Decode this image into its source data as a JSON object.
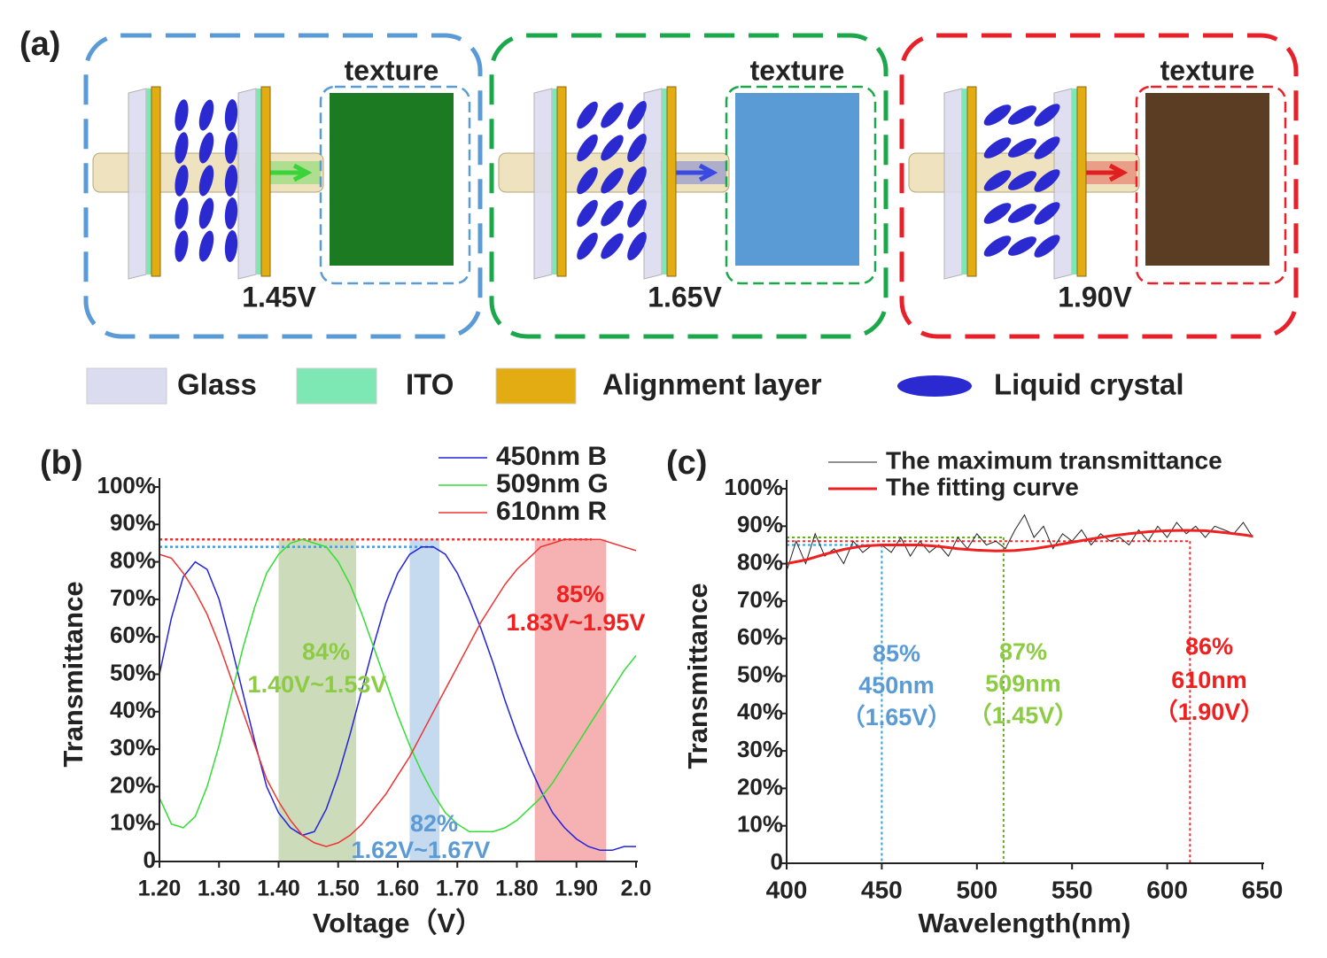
{
  "panel_a": {
    "label": "(a)",
    "cells": [
      {
        "texture_label": "texture",
        "voltage": "1.45V",
        "texture_color": "#1c7a22",
        "border_color": "#5b9bd5",
        "beam_color": "#3ad43a"
      },
      {
        "texture_label": "texture",
        "voltage": "1.65V",
        "texture_color": "#5b9bd5",
        "border_color": "#1aa84a",
        "beam_color": "#3a4ae0"
      },
      {
        "texture_label": "texture",
        "voltage": "1.90V",
        "texture_color": "#5a3d22",
        "border_color": "#e8202a",
        "beam_color": "#e02020"
      }
    ],
    "legend": [
      {
        "name": "Glass",
        "color": "#dcdcf0"
      },
      {
        "name": "ITO",
        "color": "#7ee8b4"
      },
      {
        "name": "Alignment layer",
        "color": "#e3ac12"
      },
      {
        "name": "Liquid crystal",
        "color": "#2a2ad0"
      }
    ]
  },
  "chart_data": [
    {
      "type": "line",
      "label": "(b)",
      "x_label": "Voltage（V）",
      "y_label": "Transmittance",
      "x": [
        1.2,
        1.22,
        1.24,
        1.26,
        1.28,
        1.3,
        1.32,
        1.34,
        1.36,
        1.38,
        1.4,
        1.42,
        1.44,
        1.46,
        1.48,
        1.5,
        1.52,
        1.54,
        1.56,
        1.58,
        1.6,
        1.62,
        1.64,
        1.66,
        1.68,
        1.7,
        1.72,
        1.74,
        1.76,
        1.78,
        1.8,
        1.82,
        1.84,
        1.86,
        1.88,
        1.9,
        1.92,
        1.94,
        1.96,
        1.98,
        2.0
      ],
      "series": [
        {
          "name": "450nm B",
          "color": "#2222dd",
          "values": [
            50,
            65,
            76,
            80,
            78,
            70,
            58,
            45,
            32,
            20,
            13,
            9,
            7,
            8,
            14,
            23,
            34,
            46,
            58,
            69,
            77,
            82,
            84,
            84,
            82,
            77,
            70,
            62,
            53,
            43,
            34,
            26,
            19,
            13,
            9,
            6,
            4,
            3,
            3,
            4,
            4
          ]
        },
        {
          "name": "509nm G",
          "color": "#33dd33",
          "values": [
            17,
            10,
            9,
            12,
            20,
            31,
            44,
            57,
            68,
            77,
            82,
            85,
            86,
            85,
            84,
            80,
            74,
            66,
            57,
            48,
            39,
            31,
            24,
            18,
            13,
            10,
            8,
            8,
            8,
            9,
            11,
            14,
            17,
            21,
            26,
            31,
            36,
            41,
            46,
            51,
            55
          ]
        },
        {
          "name": "610nm R",
          "color": "#ee3333",
          "values": [
            82,
            81,
            77,
            72,
            66,
            58,
            49,
            40,
            31,
            22,
            16,
            11,
            7,
            5,
            4,
            5,
            7,
            10,
            14,
            18,
            23,
            28,
            34,
            40,
            46,
            52,
            58,
            64,
            69,
            74,
            78,
            81,
            84,
            85,
            86,
            86,
            86,
            86,
            85,
            84,
            83
          ]
        }
      ],
      "bands": [
        {
          "x": [
            1.4,
            1.53
          ],
          "color": "#c3d6ae"
        },
        {
          "x": [
            1.62,
            1.67
          ],
          "color": "#bcd4ec"
        },
        {
          "x": [
            1.83,
            1.95
          ],
          "color": "#f4a4a4"
        }
      ],
      "ref_lines": [
        {
          "value": 86,
          "color": "#ee3333"
        },
        {
          "value": 84,
          "color": "#4a9ae0"
        }
      ],
      "annotations": [
        {
          "text": "84%",
          "color": "#8ccc44"
        },
        {
          "text": "1.40V~1.53V",
          "color": "#8ccc44"
        },
        {
          "text": "82%",
          "color": "#5b9bd5"
        },
        {
          "text": "1.62V~1.67V",
          "color": "#5b9bd5"
        },
        {
          "text": "85%",
          "color": "#ee2020"
        },
        {
          "text": "1.83V~1.95V",
          "color": "#ee2020"
        }
      ],
      "xlim": [
        1.2,
        2.0
      ],
      "xticks": [
        {
          "value": 1.2,
          "label": "1.20"
        },
        {
          "value": 1.3,
          "label": "1.30"
        },
        {
          "value": 1.4,
          "label": "1.40"
        },
        {
          "value": 1.5,
          "label": "1.50"
        },
        {
          "value": 1.6,
          "label": "1.60"
        },
        {
          "value": 1.7,
          "label": "1.70"
        },
        {
          "value": 1.8,
          "label": "1.80"
        },
        {
          "value": 1.9,
          "label": "1.90"
        },
        {
          "value": 2.0,
          "label": "2.0"
        }
      ],
      "ylim": [
        0,
        100
      ],
      "yticks": [
        0,
        {
          "value": 10,
          "label": "10%"
        },
        {
          "value": 20,
          "label": "20%"
        },
        {
          "value": 30,
          "label": "30%"
        },
        {
          "value": 40,
          "label": "40%"
        },
        {
          "value": 50,
          "label": "50%"
        },
        {
          "value": 60,
          "label": "60%"
        },
        {
          "value": 70,
          "label": "70%"
        },
        {
          "value": 80,
          "label": "80%"
        },
        {
          "value": 90,
          "label": "90%"
        },
        {
          "value": 100,
          "label": "100%"
        }
      ]
    },
    {
      "type": "line",
      "label": "(c)",
      "x_label": "Wavelength(nm)",
      "y_label": "Transmittance",
      "series": [
        {
          "name": "The maximum transmittance",
          "color": "#222222",
          "width": 1,
          "x": [
            400,
            405,
            410,
            415,
            420,
            425,
            430,
            435,
            440,
            445,
            450,
            455,
            460,
            465,
            470,
            475,
            480,
            485,
            490,
            495,
            500,
            505,
            510,
            515,
            520,
            525,
            530,
            535,
            540,
            545,
            550,
            555,
            560,
            565,
            570,
            575,
            580,
            585,
            590,
            595,
            600,
            605,
            610,
            615,
            620,
            625,
            630,
            635,
            640,
            645
          ],
          "values": [
            78,
            86,
            80,
            88,
            82,
            84,
            80,
            86,
            83,
            85,
            85,
            83,
            87,
            82,
            86,
            83,
            85,
            82,
            87,
            84,
            88,
            85,
            86,
            84,
            89,
            93,
            87,
            90,
            84,
            88,
            86,
            89,
            85,
            88,
            86,
            87,
            85,
            89,
            86,
            90,
            87,
            91,
            88,
            90,
            87,
            90,
            89,
            88,
            91,
            87
          ]
        },
        {
          "name": "The fitting curve",
          "color": "#ee2020",
          "width": 3,
          "x": [
            400,
            410,
            420,
            430,
            440,
            450,
            460,
            470,
            480,
            490,
            500,
            510,
            520,
            530,
            540,
            550,
            560,
            570,
            580,
            590,
            600,
            610,
            620,
            630,
            640,
            645
          ],
          "values": [
            80,
            81,
            82.5,
            83.8,
            84.7,
            85,
            85,
            85,
            84.6,
            84,
            83.6,
            83.4,
            83.5,
            84,
            84.8,
            85.7,
            86.6,
            87.4,
            88,
            88.5,
            88.8,
            88.9,
            88.8,
            88.3,
            87.7,
            87.3
          ]
        }
      ],
      "guides": [
        {
          "x": 450,
          "y": 85,
          "color": "#29a3e0"
        },
        {
          "x": 514,
          "y": 87,
          "color": "#6aaa2a"
        },
        {
          "x": 612,
          "y": 86,
          "color": "#e03030"
        }
      ],
      "annotations": [
        {
          "text": "85%",
          "color": "#5b9bd5"
        },
        {
          "text": "450nm",
          "color": "#5b9bd5"
        },
        {
          "text": "（1.65V）",
          "color": "#5b9bd5"
        },
        {
          "text": "87%",
          "color": "#8ccc44"
        },
        {
          "text": "509nm",
          "color": "#8ccc44"
        },
        {
          "text": "（1.45V）",
          "color": "#8ccc44"
        },
        {
          "text": "86%",
          "color": "#ee2020"
        },
        {
          "text": "610nm",
          "color": "#ee2020"
        },
        {
          "text": "（1.90V）",
          "color": "#ee2020"
        }
      ],
      "xlim": [
        400,
        650
      ],
      "xticks": [
        400,
        450,
        500,
        550,
        600,
        650
      ],
      "ylim": [
        0,
        100
      ],
      "yticks": [
        0,
        {
          "value": 10,
          "label": "10%"
        },
        {
          "value": 20,
          "label": "20%"
        },
        {
          "value": 30,
          "label": "30%"
        },
        {
          "value": 40,
          "label": "40%"
        },
        {
          "value": 50,
          "label": "50%"
        },
        {
          "value": 60,
          "label": "60%"
        },
        {
          "value": 70,
          "label": "70%"
        },
        {
          "value": 80,
          "label": "80%"
        },
        {
          "value": 90,
          "label": "90%"
        },
        {
          "value": 100,
          "label": "100%"
        }
      ]
    }
  ]
}
